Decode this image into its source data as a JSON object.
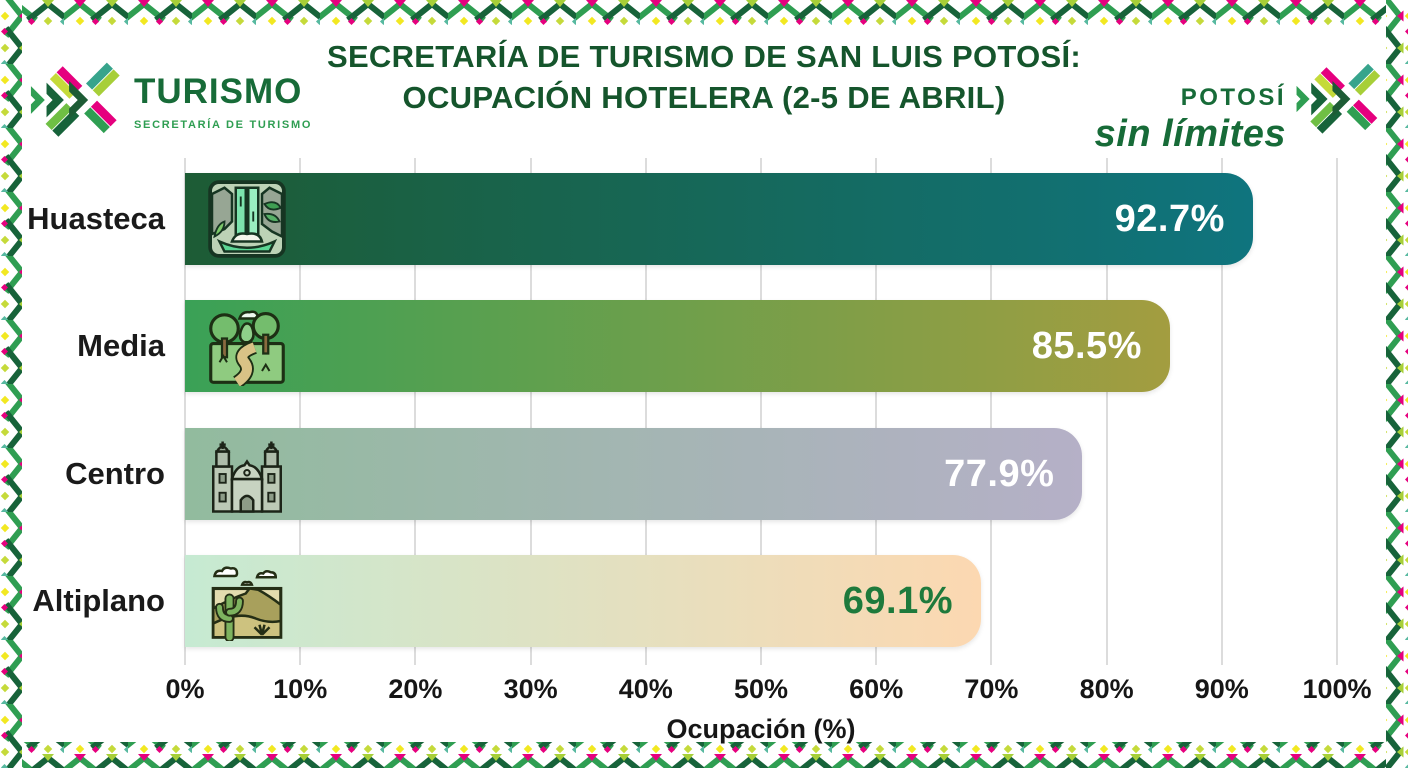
{
  "header": {
    "title_line1": "SECRETARÍA DE TURISMO DE SAN LUIS POTOSÍ:",
    "title_line2": "OCUPACIÓN HOTELERA (2-5 DE ABRIL)"
  },
  "branding": {
    "left_logo": {
      "icon": "turismo-burst-icon",
      "name": "TURISMO",
      "subtitle": "SECRETARÍA DE TURISMO"
    },
    "right_logo": {
      "icon": "potosi-burst-icon",
      "line1": "POTOSÍ",
      "line2": "sin límites"
    }
  },
  "colors": {
    "title_green": "#15552c",
    "brand_green": "#176b38",
    "gridline": "#dcdcdc",
    "axis_text": "#161616",
    "border_palette": [
      "#2f9e52",
      "#17633a",
      "#a7cf38",
      "#e5007e",
      "#f2e821",
      "#57b9a0"
    ]
  },
  "chart_data": {
    "type": "bar",
    "orientation": "horizontal",
    "title": "Secretaría de Turismo de San Luis Potosí: ocupación hotelera (2-5 de abril)",
    "categories": [
      "Huasteca",
      "Media",
      "Centro",
      "Altiplano"
    ],
    "values": [
      92.7,
      85.5,
      77.9,
      69.1
    ],
    "xlabel": "Ocupación (%)",
    "xlim": [
      0,
      100
    ],
    "x_ticks": [
      0,
      10,
      20,
      30,
      40,
      50,
      60,
      70,
      80,
      90,
      100
    ],
    "x_tick_labels": [
      "0%",
      "10%",
      "20%",
      "30%",
      "40%",
      "50%",
      "60%",
      "70%",
      "80%",
      "90%",
      "100%"
    ],
    "grid": true,
    "legend": false,
    "bars": [
      {
        "category": "Huasteca",
        "value": 92.7,
        "label": "92.7%",
        "icon": "waterfall-icon",
        "gradient": [
          "#1d5c35",
          "#0f747e"
        ],
        "label_color": "#ffffff"
      },
      {
        "category": "Media",
        "value": 85.5,
        "label": "85.5%",
        "icon": "forest-path-icon",
        "gradient": [
          "#3aa156",
          "#a39d40"
        ],
        "label_color": "#ffffff"
      },
      {
        "category": "Centro",
        "value": 77.9,
        "label": "77.9%",
        "icon": "cathedral-icon",
        "gradient": [
          "#92bb9e",
          "#b5b0c7"
        ],
        "label_color": "#ffffff"
      },
      {
        "category": "Altiplano",
        "value": 69.1,
        "label": "69.1%",
        "icon": "desert-icon",
        "gradient": [
          "#c6ead2",
          "#fcd8b1"
        ],
        "label_color": "#1e7a3c"
      }
    ]
  }
}
